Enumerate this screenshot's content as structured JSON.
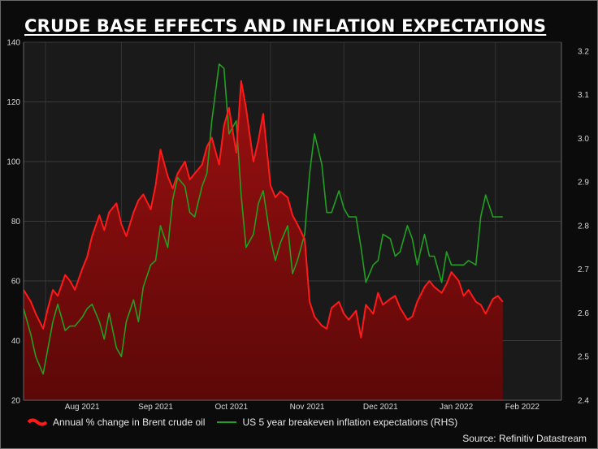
{
  "title": "CRUDE BASE EFFECTS AND INFLATION EXPECTATIONS",
  "source": "Source: Refinitiv Datastream",
  "colors": {
    "red_line": "#ff1a1a",
    "red_fill": "#8c0e0e",
    "green_line": "#22a022",
    "background": "#0b0b0b",
    "plot_bg": "#1a1a1a"
  },
  "chart_data": {
    "type": "line",
    "x_tick_labels": [
      "Aug 2021",
      "Sep 2021",
      "Oct 2021",
      "Nov 2021",
      "Dec 2021",
      "Jan 2022",
      "Feb 2022"
    ],
    "x_range": [
      "2021-07-23",
      "2022-02-28"
    ],
    "y_left": {
      "ticks": [
        20,
        40,
        60,
        80,
        100,
        120,
        140
      ],
      "range": [
        20,
        140
      ]
    },
    "y_right": {
      "ticks": [
        "2.4",
        "2.5",
        "2.6",
        "2.7",
        "2.8",
        "2.9",
        "3.0",
        "3.1",
        "3.2"
      ],
      "range": [
        2.4,
        3.22
      ]
    },
    "grid": true,
    "legend_position": "bottom",
    "series": [
      {
        "name": "Annual % change in Brent crude oil",
        "axis": "left",
        "style": "area",
        "x": [
          "2021-07-23",
          "2021-07-26",
          "2021-07-28",
          "2021-07-31",
          "2021-08-02",
          "2021-08-04",
          "2021-08-06",
          "2021-08-09",
          "2021-08-11",
          "2021-08-13",
          "2021-08-16",
          "2021-08-18",
          "2021-08-20",
          "2021-08-23",
          "2021-08-25",
          "2021-08-27",
          "2021-08-30",
          "2021-09-01",
          "2021-09-03",
          "2021-09-06",
          "2021-09-08",
          "2021-09-10",
          "2021-09-13",
          "2021-09-15",
          "2021-09-17",
          "2021-09-20",
          "2021-09-22",
          "2021-09-24",
          "2021-09-27",
          "2021-09-29",
          "2021-10-01",
          "2021-10-04",
          "2021-10-06",
          "2021-10-08",
          "2021-10-11",
          "2021-10-13",
          "2021-10-15",
          "2021-10-18",
          "2021-10-20",
          "2021-10-22",
          "2021-10-25",
          "2021-10-27",
          "2021-10-29",
          "2021-11-01",
          "2021-11-03",
          "2021-11-05",
          "2021-11-08",
          "2021-11-10",
          "2021-11-12",
          "2021-11-15",
          "2021-11-17",
          "2021-11-19",
          "2021-11-22",
          "2021-11-24",
          "2021-11-26",
          "2021-11-29",
          "2021-12-01",
          "2021-12-03",
          "2021-12-06",
          "2021-12-08",
          "2021-12-10",
          "2021-12-13",
          "2021-12-15",
          "2021-12-17",
          "2021-12-20",
          "2021-12-22",
          "2021-12-24",
          "2021-12-27",
          "2021-12-29",
          "2021-12-31",
          "2022-01-03",
          "2022-01-05",
          "2022-01-07",
          "2022-01-10",
          "2022-01-12",
          "2022-01-14",
          "2022-01-17",
          "2022-01-19",
          "2022-01-21",
          "2022-01-24",
          "2022-01-26",
          "2022-01-28",
          "2022-01-31",
          "2022-02-02",
          "2022-02-04"
        ],
        "values": [
          57,
          53,
          49,
          44,
          51,
          57,
          55,
          62,
          60,
          57,
          64,
          68,
          75,
          82,
          77,
          83,
          86,
          79,
          75,
          83,
          87,
          89,
          84,
          92,
          104,
          95,
          91,
          96,
          100,
          94,
          96,
          99,
          105,
          108,
          99,
          112,
          118,
          103,
          127,
          118,
          100,
          107,
          116,
          92,
          88,
          90,
          88,
          82,
          79,
          74,
          53,
          48,
          45,
          44,
          51,
          53,
          49,
          47,
          50,
          41,
          52,
          49,
          56,
          52,
          54,
          55,
          51,
          47,
          48,
          53,
          58,
          60,
          58,
          56,
          59,
          63,
          60,
          55,
          57,
          53,
          52,
          49,
          54,
          55,
          53
        ]
      },
      {
        "name": "US 5 year breakeven inflation expectations (RHS)",
        "axis": "right",
        "style": "line",
        "x": [
          "2021-07-23",
          "2021-07-26",
          "2021-07-28",
          "2021-07-31",
          "2021-08-02",
          "2021-08-04",
          "2021-08-06",
          "2021-08-09",
          "2021-08-11",
          "2021-08-13",
          "2021-08-16",
          "2021-08-18",
          "2021-08-20",
          "2021-08-23",
          "2021-08-25",
          "2021-08-27",
          "2021-08-30",
          "2021-09-01",
          "2021-09-03",
          "2021-09-06",
          "2021-09-08",
          "2021-09-10",
          "2021-09-13",
          "2021-09-15",
          "2021-09-17",
          "2021-09-20",
          "2021-09-22",
          "2021-09-24",
          "2021-09-27",
          "2021-09-29",
          "2021-10-01",
          "2021-10-04",
          "2021-10-06",
          "2021-10-08",
          "2021-10-11",
          "2021-10-13",
          "2021-10-15",
          "2021-10-18",
          "2021-10-20",
          "2021-10-22",
          "2021-10-25",
          "2021-10-27",
          "2021-10-29",
          "2021-11-01",
          "2021-11-03",
          "2021-11-05",
          "2021-11-08",
          "2021-11-10",
          "2021-11-12",
          "2021-11-15",
          "2021-11-17",
          "2021-11-19",
          "2021-11-22",
          "2021-11-24",
          "2021-11-26",
          "2021-11-29",
          "2021-12-01",
          "2021-12-03",
          "2021-12-06",
          "2021-12-08",
          "2021-12-10",
          "2021-12-13",
          "2021-12-15",
          "2021-12-17",
          "2021-12-20",
          "2021-12-22",
          "2021-12-24",
          "2021-12-27",
          "2021-12-29",
          "2021-12-31",
          "2022-01-03",
          "2022-01-05",
          "2022-01-07",
          "2022-01-10",
          "2022-01-12",
          "2022-01-14",
          "2022-01-17",
          "2022-01-19",
          "2022-01-21",
          "2022-01-24",
          "2022-01-26",
          "2022-01-28",
          "2022-01-31",
          "2022-02-02",
          "2022-02-04"
        ],
        "values": [
          2.61,
          2.55,
          2.5,
          2.46,
          2.52,
          2.58,
          2.62,
          2.56,
          2.57,
          2.57,
          2.59,
          2.61,
          2.62,
          2.58,
          2.54,
          2.6,
          2.52,
          2.5,
          2.58,
          2.63,
          2.58,
          2.66,
          2.71,
          2.72,
          2.8,
          2.75,
          2.86,
          2.91,
          2.89,
          2.83,
          2.82,
          2.89,
          2.92,
          3.04,
          3.17,
          3.16,
          3.01,
          3.04,
          2.87,
          2.75,
          2.78,
          2.85,
          2.88,
          2.77,
          2.72,
          2.76,
          2.8,
          2.69,
          2.72,
          2.78,
          2.92,
          3.01,
          2.94,
          2.83,
          2.83,
          2.88,
          2.84,
          2.82,
          2.82,
          2.75,
          2.67,
          2.71,
          2.72,
          2.78,
          2.77,
          2.73,
          2.74,
          2.8,
          2.77,
          2.71,
          2.78,
          2.73,
          2.73,
          2.67,
          2.74,
          2.71,
          2.71,
          2.71,
          2.72,
          2.71,
          2.82,
          2.87,
          2.82,
          2.82,
          2.82
        ]
      }
    ]
  }
}
